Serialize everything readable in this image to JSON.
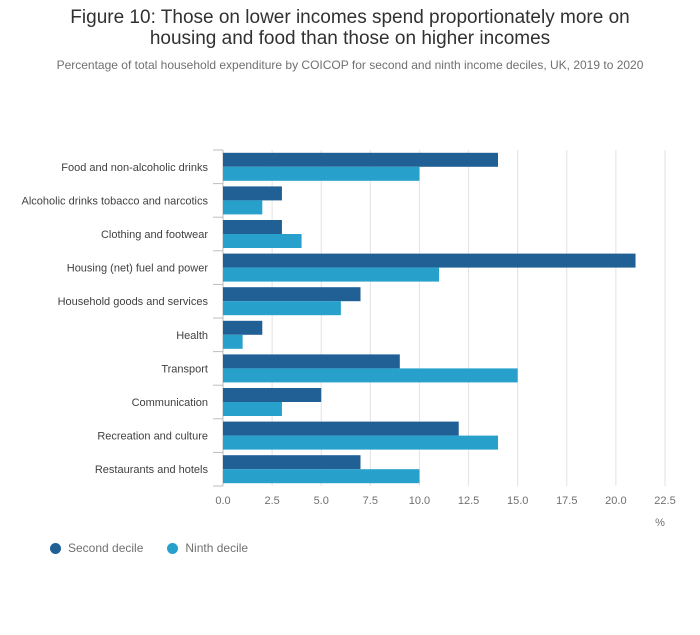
{
  "chart_data": {
    "type": "bar",
    "orientation": "horizontal",
    "title": "Figure 10: Those on lower incomes spend proportionately more on housing and food than those on higher incomes",
    "title_lines": [
      "Figure 10: Those on lower incomes spend proportionately more on",
      "housing and food than those on higher incomes"
    ],
    "subtitle": "Percentage of total household expenditure by COICOP for second and ninth income deciles, UK, 2019 to 2020",
    "xlabel": "%",
    "ylabel": "",
    "xlim": [
      0,
      22.5
    ],
    "xticks": [
      "0.0",
      "2.5",
      "5.0",
      "7.5",
      "10.0",
      "12.5",
      "15.0",
      "17.5",
      "20.0",
      "22.5"
    ],
    "grid": true,
    "legend_position": "bottom-left",
    "categories": [
      "Food and non-alcoholic drinks",
      "Alcoholic drinks tobacco and narcotics",
      "Clothing and footwear",
      "Housing (net) fuel and power",
      "Household goods and services",
      "Health",
      "Transport",
      "Communication",
      "Recreation and culture",
      "Restaurants and hotels"
    ],
    "series": [
      {
        "name": "Second decile",
        "color": "#206095",
        "values": [
          14,
          3,
          3,
          21,
          7,
          2,
          9,
          5,
          12,
          7
        ]
      },
      {
        "name": "Ninth decile",
        "color": "#27a0cc",
        "values": [
          10,
          2,
          4,
          11,
          6,
          1,
          15,
          3,
          14,
          10
        ]
      }
    ]
  }
}
